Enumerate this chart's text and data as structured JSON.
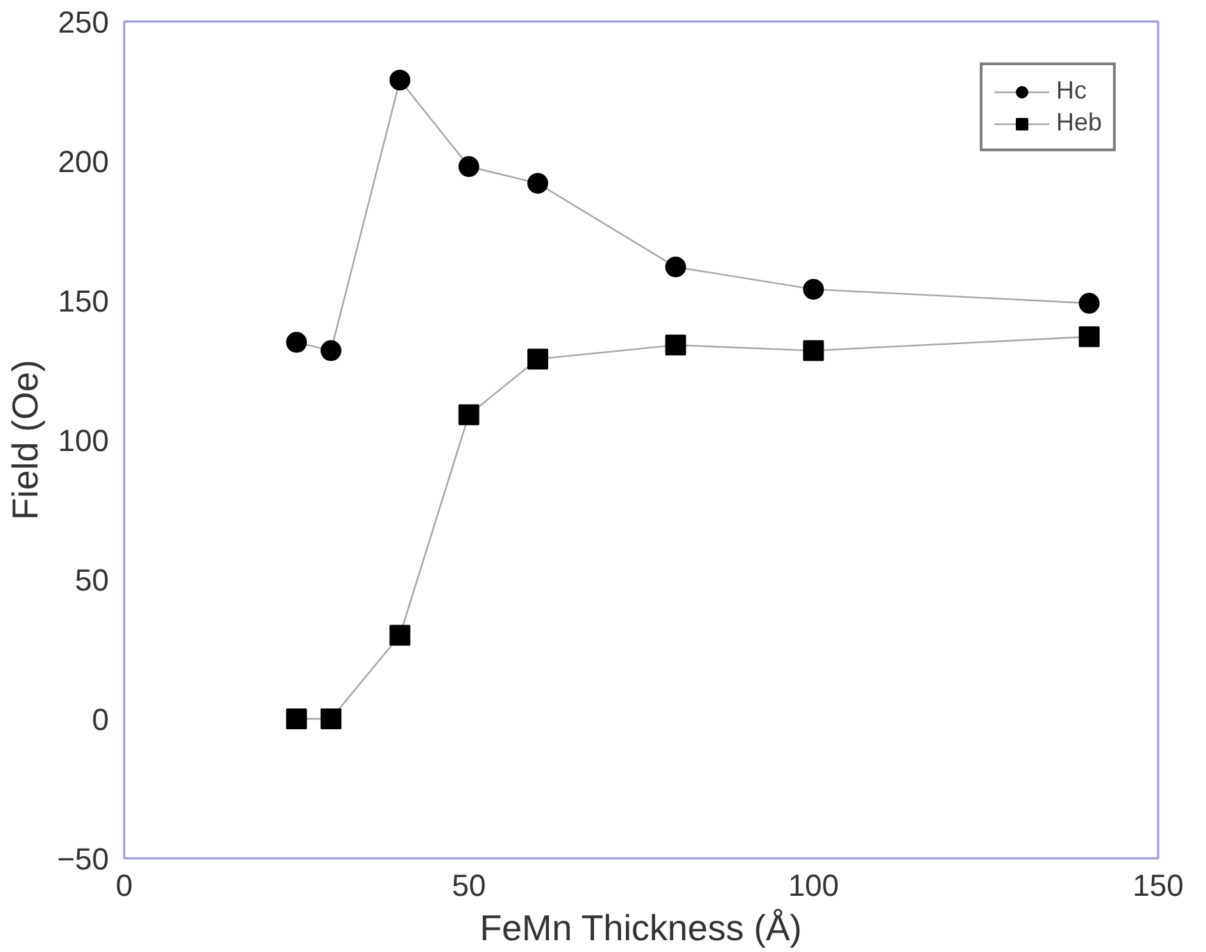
{
  "chart_data": {
    "type": "line",
    "xlabel": "FeMn Thickness (Å)",
    "ylabel": "Field (Oe)",
    "x": [
      25,
      30,
      40,
      50,
      60,
      80,
      100,
      140
    ],
    "series": [
      {
        "name": "Hc",
        "color": "#000000",
        "marker": "circle",
        "values": [
          135,
          132,
          229,
          198,
          192,
          162,
          154,
          149
        ]
      },
      {
        "name": "Heb",
        "color": "#000000",
        "marker": "square",
        "values": [
          0,
          0,
          30,
          109,
          129,
          134,
          132,
          137
        ]
      }
    ],
    "xlim": [
      0,
      150
    ],
    "xticks": [
      0,
      50,
      100,
      150
    ],
    "ylim": [
      -50,
      250
    ],
    "yticks": [
      -50,
      0,
      50,
      100,
      150,
      200,
      250
    ],
    "grid": false,
    "legend": "top right"
  }
}
